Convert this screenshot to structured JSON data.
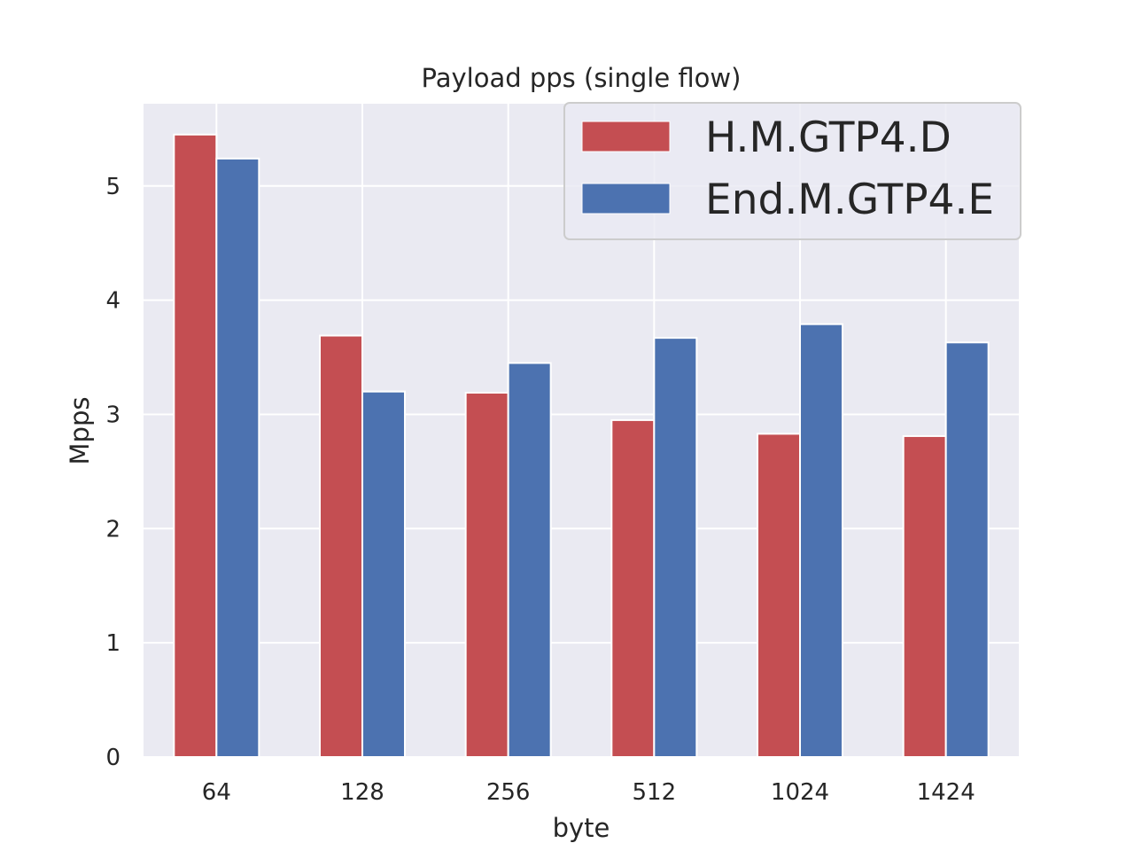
{
  "chart_data": {
    "type": "bar",
    "title": "Payload pps (single flow)",
    "xlabel": "byte",
    "ylabel": "Mpps",
    "categories": [
      "64",
      "128",
      "256",
      "512",
      "1024",
      "1424"
    ],
    "series": [
      {
        "name": "H.M.GTP4.D",
        "color": "#c44e52",
        "values": [
          5.45,
          3.69,
          3.19,
          2.95,
          2.83,
          2.81
        ]
      },
      {
        "name": "End.M.GTP4.E",
        "color": "#4c72b0",
        "values": [
          5.24,
          3.2,
          3.45,
          3.67,
          3.79,
          3.63
        ]
      }
    ],
    "ylim": [
      0,
      5.72
    ],
    "yticks": [
      0,
      1,
      2,
      3,
      4,
      5
    ],
    "grid": true,
    "legend": "top-right",
    "colors": {
      "plot_background": "#eaeaf2",
      "grid": "#ffffff"
    }
  }
}
